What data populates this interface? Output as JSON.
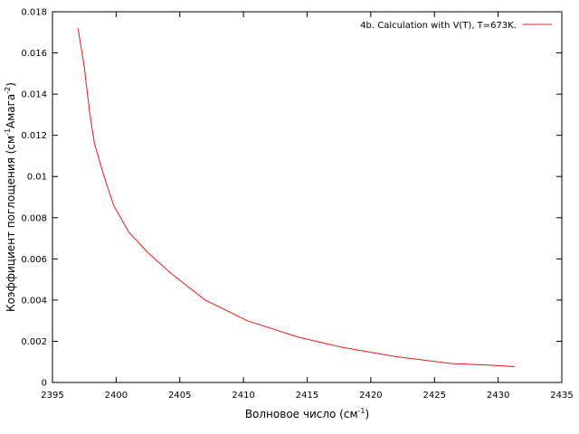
{
  "chart_data": {
    "type": "line",
    "xlabel": "Волновое число (см",
    "xlabel_sup": "-1",
    "xlabel_end": ")",
    "ylabel_start": "Коэффициент поглощения (см",
    "ylabel_sup1": "-1",
    "ylabel_mid": "Амага",
    "ylabel_sup2": "-2",
    "ylabel_end": ")",
    "xlim": [
      2395,
      2435
    ],
    "ylim": [
      0,
      0.018
    ],
    "xticks": [
      "2395",
      "2400",
      "2405",
      "2410",
      "2415",
      "2420",
      "2425",
      "2430",
      "2435"
    ],
    "yticks": [
      "0",
      "0.002",
      "0.004",
      "0.006",
      "0.008",
      "0.01",
      "0.012",
      "0.014",
      "0.016",
      "0.018"
    ],
    "grid": false,
    "legend_position": "top-right",
    "series": [
      {
        "name": "4b. Calculation with V(T), T=673K.",
        "color": "#e41a1c",
        "x": [
          2397.0,
          2397.5,
          2397.9,
          2398.3,
          2399.0,
          2399.8,
          2401.0,
          2402.5,
          2404.3,
          2407.0,
          2410.3,
          2414.3,
          2417.8,
          2422.0,
          2426.3,
          2429.0,
          2431.3
        ],
        "y": [
          0.0172,
          0.0153,
          0.0132,
          0.0116,
          0.0101,
          0.0086,
          0.0073,
          0.0063,
          0.0053,
          0.004,
          0.003,
          0.0022,
          0.0017,
          0.00125,
          0.00092,
          0.00085,
          0.00077
        ]
      }
    ]
  }
}
